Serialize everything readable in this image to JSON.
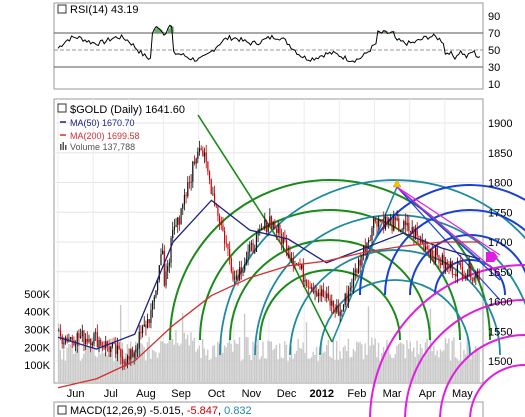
{
  "rsi_panel": {
    "label": "RSI(14)",
    "value": "43.19",
    "ticks": [
      "90",
      "70",
      "50",
      "30",
      "10"
    ]
  },
  "price_panel": {
    "symbol_label": "$GOLD (Daily)",
    "last_price": "1641.60",
    "legend": [
      {
        "label": "MA(50)",
        "value": "1670.70",
        "color": "#1a237e"
      },
      {
        "label": "MA(200)",
        "value": "1699.58",
        "color": "#d32f2f"
      },
      {
        "label": "Volume",
        "value": "137,788",
        "color": "#555555"
      }
    ],
    "price_ticks": [
      "1900",
      "1850",
      "1800",
      "1750",
      "1700",
      "1650",
      "1600",
      "1550",
      "1500"
    ],
    "volume_ticks": [
      "500K",
      "400K",
      "300K",
      "200K",
      "100K"
    ],
    "x_ticks": [
      "Jun",
      "Jul",
      "Aug",
      "Sep",
      "Oct",
      "Nov",
      "Dec",
      "2012",
      "Feb",
      "Mar",
      "Apr",
      "May"
    ]
  },
  "macd_panel": {
    "label": "MACD(12,26,9)",
    "macd": "-5.015",
    "signal": "-5.847",
    "histogram": "0.832"
  },
  "colors": {
    "up": "#111111",
    "down": "#cc0000",
    "ma50": "#1a237e",
    "ma200": "#d32f2f",
    "arc_green": "#1b8a1b",
    "arc_teal": "#1e8aa0",
    "arc_blue": "#1a3fd6",
    "arc_magenta": "#e01ee0",
    "volume": "#c8c8c8"
  },
  "chart_data": {
    "type": "candlestick",
    "title": "$GOLD (Daily)",
    "x_categories": [
      "Jun",
      "Jul",
      "Aug",
      "Sep",
      "Oct",
      "Nov",
      "Dec",
      "2012",
      "Feb",
      "Mar",
      "Apr",
      "May"
    ],
    "ylim": [
      1480,
      1920
    ],
    "monthly_close": [
      1540,
      1500,
      1630,
      1870,
      1640,
      1740,
      1640,
      1580,
      1740,
      1720,
      1660,
      1645
    ],
    "ma50_points": [
      1540,
      1520,
      1545,
      1700,
      1770,
      1720,
      1705,
      1665,
      1690,
      1715,
      1690,
      1671
    ],
    "ma200_points": [
      1455,
      1470,
      1500,
      1560,
      1610,
      1640,
      1660,
      1668,
      1683,
      1693,
      1700,
      1700
    ],
    "rsi": {
      "ylim": [
        10,
        90
      ],
      "last": 43.19
    },
    "volume_ylim": [
      0,
      550000
    ]
  }
}
